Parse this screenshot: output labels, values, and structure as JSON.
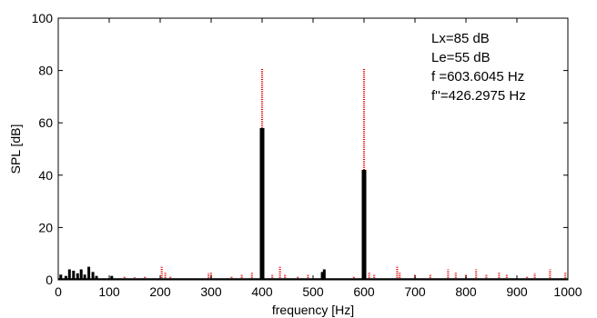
{
  "chart_data": {
    "type": "bar",
    "xlabel": "frequency [Hz]",
    "ylabel": "SPL [dB]",
    "xlim": [
      0,
      1000
    ],
    "ylim": [
      0,
      100
    ],
    "xticks": [
      0,
      100,
      200,
      300,
      400,
      500,
      600,
      700,
      800,
      900,
      1000
    ],
    "yticks": [
      0,
      20,
      40,
      60,
      80,
      100
    ],
    "grid": false,
    "annotations": [
      "Lx=85 dB",
      "Le=55 dB",
      "f =603.6045 Hz",
      "f''=426.2975 Hz"
    ],
    "series": [
      {
        "style": "black solid stems",
        "color": "#000000",
        "points": [
          {
            "x": 5,
            "y": 2
          },
          {
            "x": 15,
            "y": 1.5
          },
          {
            "x": 22,
            "y": 4
          },
          {
            "x": 30,
            "y": 3.5
          },
          {
            "x": 38,
            "y": 2.5
          },
          {
            "x": 45,
            "y": 4
          },
          {
            "x": 52,
            "y": 2
          },
          {
            "x": 60,
            "y": 5
          },
          {
            "x": 68,
            "y": 3
          },
          {
            "x": 75,
            "y": 1.5
          },
          {
            "x": 105,
            "y": 1.5
          },
          {
            "x": 400,
            "y": 58
          },
          {
            "x": 518,
            "y": 3
          },
          {
            "x": 522,
            "y": 4
          },
          {
            "x": 600,
            "y": 42
          }
        ]
      },
      {
        "style": "red dotted stems",
        "color": "#e60000",
        "points": [
          {
            "x": 130,
            "y": 1.5
          },
          {
            "x": 150,
            "y": 1
          },
          {
            "x": 170,
            "y": 1.5
          },
          {
            "x": 203,
            "y": 5
          },
          {
            "x": 210,
            "y": 3
          },
          {
            "x": 220,
            "y": 1.5
          },
          {
            "x": 295,
            "y": 2.5
          },
          {
            "x": 300,
            "y": 3
          },
          {
            "x": 340,
            "y": 1.5
          },
          {
            "x": 360,
            "y": 2
          },
          {
            "x": 380,
            "y": 3
          },
          {
            "x": 400,
            "y": 81
          },
          {
            "x": 420,
            "y": 2
          },
          {
            "x": 435,
            "y": 5
          },
          {
            "x": 445,
            "y": 2
          },
          {
            "x": 470,
            "y": 1.5
          },
          {
            "x": 490,
            "y": 2
          },
          {
            "x": 580,
            "y": 1.5
          },
          {
            "x": 600,
            "y": 81
          },
          {
            "x": 610,
            "y": 3
          },
          {
            "x": 620,
            "y": 2
          },
          {
            "x": 665,
            "y": 5
          },
          {
            "x": 670,
            "y": 3
          },
          {
            "x": 700,
            "y": 2
          },
          {
            "x": 730,
            "y": 2
          },
          {
            "x": 765,
            "y": 4
          },
          {
            "x": 780,
            "y": 3
          },
          {
            "x": 800,
            "y": 2
          },
          {
            "x": 820,
            "y": 4
          },
          {
            "x": 840,
            "y": 2
          },
          {
            "x": 865,
            "y": 3
          },
          {
            "x": 880,
            "y": 2
          },
          {
            "x": 920,
            "y": 1.5
          },
          {
            "x": 935,
            "y": 2.5
          },
          {
            "x": 965,
            "y": 4
          },
          {
            "x": 995,
            "y": 3
          }
        ]
      }
    ]
  }
}
